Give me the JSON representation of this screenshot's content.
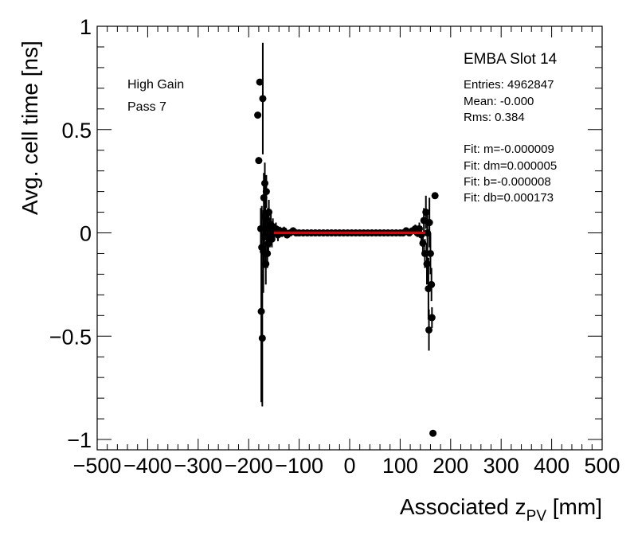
{
  "chart_data": {
    "type": "scatter",
    "xlabel_main": "Associated z",
    "xlabel_sub": "PV",
    "xlabel_unit": " [mm]",
    "ylabel": "Avg. cell time [ns]",
    "xlim": [
      -500,
      500
    ],
    "ylim": [
      -1.05,
      1.0
    ],
    "x_ticks": [
      "−500",
      "−400",
      "−300",
      "−200",
      "−100",
      "0",
      "100",
      "200",
      "300",
      "400",
      "500"
    ],
    "y_ticks": [
      "−1",
      "−0.5",
      "0",
      "0.5",
      "1"
    ],
    "fit_line": {
      "x": [
        -150,
        150
      ],
      "y": [
        0.0,
        0.0
      ],
      "color": "#e00000"
    },
    "series": [
      {
        "points": [
          {
            "x": -182,
            "y": 0.57,
            "err": 0.0
          },
          {
            "x": -180,
            "y": 0.35,
            "err": 0.0
          },
          {
            "x": -178,
            "y": 0.73,
            "err": 0.0
          },
          {
            "x": -176,
            "y": 0.02,
            "err": 0.1
          },
          {
            "x": -175,
            "y": -0.38,
            "err": 0.44
          },
          {
            "x": -174,
            "y": -0.07,
            "err": 0.2
          },
          {
            "x": -173,
            "y": -0.51,
            "err": 0.33
          },
          {
            "x": -172,
            "y": 0.65,
            "err": 0.27
          },
          {
            "x": -171,
            "y": -0.09,
            "err": 0.2
          },
          {
            "x": -170,
            "y": 0.17,
            "err": 0.12
          },
          {
            "x": -169,
            "y": -0.02,
            "err": 0.15
          },
          {
            "x": -168,
            "y": 0.24,
            "err": 0.1
          },
          {
            "x": -167,
            "y": 0.08,
            "err": 0.1
          },
          {
            "x": -166,
            "y": -0.15,
            "err": 0.1
          },
          {
            "x": -165,
            "y": 0.2,
            "err": 0.08
          },
          {
            "x": -164,
            "y": 0.02,
            "err": 0.08
          },
          {
            "x": -163,
            "y": -0.1,
            "err": 0.07
          },
          {
            "x": -162,
            "y": 0.06,
            "err": 0.06
          },
          {
            "x": -161,
            "y": -0.05,
            "err": 0.06
          },
          {
            "x": -160,
            "y": 0.1,
            "err": 0.06
          },
          {
            "x": -158,
            "y": -0.02,
            "err": 0.05
          },
          {
            "x": -156,
            "y": 0.04,
            "err": 0.05
          },
          {
            "x": -154,
            "y": -0.03,
            "err": 0.04
          },
          {
            "x": -152,
            "y": 0.03,
            "err": 0.04
          },
          {
            "x": -150,
            "y": 0.0,
            "err": 0.04
          },
          {
            "x": -146,
            "y": 0.02,
            "err": 0.03
          },
          {
            "x": -142,
            "y": -0.01,
            "err": 0.03
          },
          {
            "x": -138,
            "y": 0.01,
            "err": 0.02
          },
          {
            "x": -134,
            "y": 0.0,
            "err": 0.02
          },
          {
            "x": -130,
            "y": 0.01,
            "err": 0.02
          },
          {
            "x": -124,
            "y": -0.01,
            "err": 0.015
          },
          {
            "x": -118,
            "y": 0.0,
            "err": 0.015
          },
          {
            "x": -112,
            "y": 0.01,
            "err": 0.01
          },
          {
            "x": -106,
            "y": 0.0,
            "err": 0.01
          },
          {
            "x": -100,
            "y": 0.0,
            "err": 0.01
          },
          {
            "x": -92,
            "y": 0.0,
            "err": 0.01
          },
          {
            "x": -84,
            "y": 0.0,
            "err": 0.01
          },
          {
            "x": -76,
            "y": 0.0,
            "err": 0.01
          },
          {
            "x": -68,
            "y": 0.0,
            "err": 0.01
          },
          {
            "x": -60,
            "y": 0.0,
            "err": 0.01
          },
          {
            "x": -52,
            "y": 0.0,
            "err": 0.01
          },
          {
            "x": -44,
            "y": 0.0,
            "err": 0.01
          },
          {
            "x": -36,
            "y": 0.0,
            "err": 0.01
          },
          {
            "x": -28,
            "y": 0.0,
            "err": 0.01
          },
          {
            "x": -20,
            "y": 0.0,
            "err": 0.01
          },
          {
            "x": -12,
            "y": 0.0,
            "err": 0.01
          },
          {
            "x": -4,
            "y": 0.0,
            "err": 0.01
          },
          {
            "x": 4,
            "y": 0.0,
            "err": 0.01
          },
          {
            "x": 12,
            "y": 0.0,
            "err": 0.01
          },
          {
            "x": 20,
            "y": 0.0,
            "err": 0.01
          },
          {
            "x": 28,
            "y": 0.0,
            "err": 0.01
          },
          {
            "x": 36,
            "y": 0.0,
            "err": 0.01
          },
          {
            "x": 44,
            "y": 0.0,
            "err": 0.01
          },
          {
            "x": 52,
            "y": 0.0,
            "err": 0.01
          },
          {
            "x": 60,
            "y": 0.0,
            "err": 0.01
          },
          {
            "x": 68,
            "y": 0.0,
            "err": 0.01
          },
          {
            "x": 76,
            "y": 0.0,
            "err": 0.01
          },
          {
            "x": 84,
            "y": 0.0,
            "err": 0.01
          },
          {
            "x": 92,
            "y": 0.0,
            "err": 0.01
          },
          {
            "x": 100,
            "y": 0.0,
            "err": 0.01
          },
          {
            "x": 106,
            "y": 0.0,
            "err": 0.01
          },
          {
            "x": 112,
            "y": 0.01,
            "err": 0.01
          },
          {
            "x": 118,
            "y": 0.0,
            "err": 0.015
          },
          {
            "x": 124,
            "y": 0.01,
            "err": 0.015
          },
          {
            "x": 130,
            "y": 0.02,
            "err": 0.02
          },
          {
            "x": 134,
            "y": 0.0,
            "err": 0.02
          },
          {
            "x": 138,
            "y": 0.02,
            "err": 0.03
          },
          {
            "x": 142,
            "y": -0.01,
            "err": 0.04
          },
          {
            "x": 145,
            "y": -0.05,
            "err": 0.05
          },
          {
            "x": 147,
            "y": 0.06,
            "err": 0.06
          },
          {
            "x": 149,
            "y": -0.1,
            "err": 0.07
          },
          {
            "x": 151,
            "y": 0.1,
            "err": 0.08
          },
          {
            "x": 153,
            "y": -0.15,
            "err": 0.1
          },
          {
            "x": 154,
            "y": 0.0,
            "err": 0.1
          },
          {
            "x": 156,
            "y": -0.27,
            "err": 0.15
          },
          {
            "x": 157,
            "y": -0.47,
            "err": 0.1
          },
          {
            "x": 158,
            "y": 0.05,
            "err": 0.12
          },
          {
            "x": 160,
            "y": -0.1,
            "err": 0.1
          },
          {
            "x": 162,
            "y": -0.25,
            "err": 0.08
          },
          {
            "x": 163,
            "y": -0.41,
            "err": 0.05
          },
          {
            "x": 165,
            "y": -0.97,
            "err": 0.0
          },
          {
            "x": 169,
            "y": 0.18,
            "err": 0.0
          }
        ]
      }
    ]
  },
  "stats": {
    "title": "EMBA Slot 14",
    "entries": "Entries: 4962847",
    "mean": "Mean: -0.000",
    "rms": "Rms: 0.384",
    "fit_m": "Fit: m=-0.000009",
    "fit_dm": "Fit: dm=0.000005",
    "fit_b": "Fit: b=-0.000008",
    "fit_db": "Fit: db=0.000173"
  },
  "labels": {
    "gain": "High Gain",
    "pass": "Pass 7"
  }
}
